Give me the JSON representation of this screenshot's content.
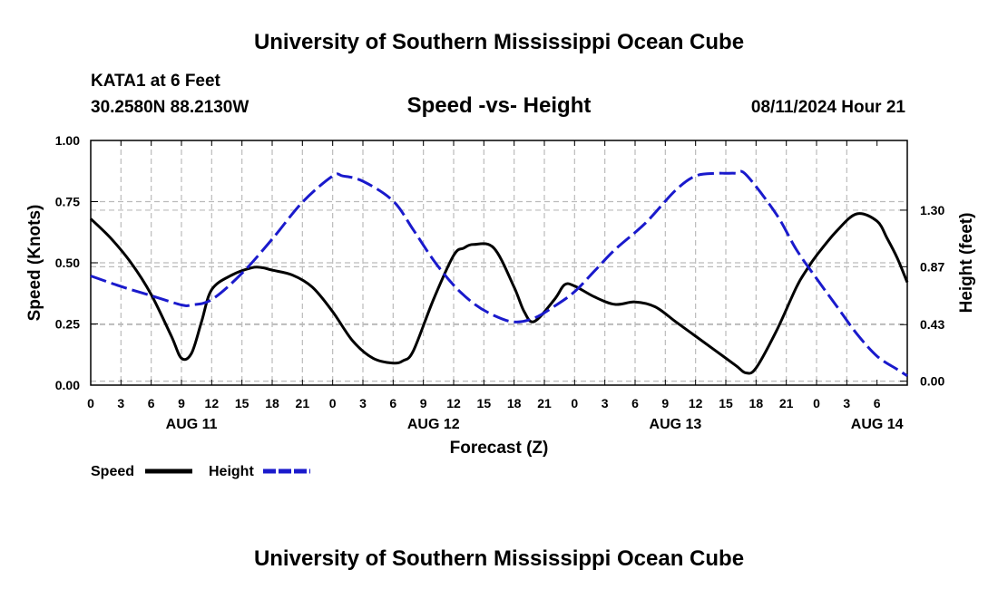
{
  "header": {
    "title": "University of Southern Mississippi Ocean Cube",
    "footer_title": "University of Southern Mississippi Ocean Cube",
    "station": "KATA1 at 6 Feet",
    "location": "30.2580N  88.2130W",
    "date": "08/11/2024 Hour 21"
  },
  "chart_data": {
    "type": "line",
    "title": "Speed -vs- Height",
    "xlabel": "Forecast (Z)",
    "ylabel_left": "Speed (Knots)",
    "ylabel_right": "Height (feet)",
    "x_range": [
      0,
      81
    ],
    "x_ticks": [
      "0",
      "3",
      "6",
      "9",
      "12",
      "15",
      "18",
      "21",
      "0",
      "3",
      "6",
      "9",
      "12",
      "15",
      "18",
      "21",
      "0",
      "3",
      "6",
      "9",
      "12",
      "15",
      "18",
      "21",
      "0",
      "3",
      "6"
    ],
    "day_labels": [
      {
        "label": "AUG 11",
        "hour": 10
      },
      {
        "label": "AUG 12",
        "hour": 34
      },
      {
        "label": "AUG 13",
        "hour": 58
      },
      {
        "label": "AUG 14",
        "hour": 78
      }
    ],
    "y_left": {
      "range": [
        0,
        1.0
      ],
      "ticks": [
        "0.00",
        "0.25",
        "0.50",
        "0.75",
        "1.00"
      ],
      "tick_values": [
        0,
        0.25,
        0.5,
        0.75,
        1.0
      ]
    },
    "y_right": {
      "range": [
        -0.03,
        1.83
      ],
      "ticks": [
        "0.00",
        "0.43",
        "0.87",
        "1.30"
      ],
      "tick_values": [
        0,
        0.43,
        0.87,
        1.3
      ]
    },
    "series": [
      {
        "name": "Speed",
        "color": "#000000",
        "dash": "solid",
        "axis": "left",
        "x": [
          0,
          2,
          4,
          6,
          8,
          9,
          10,
          11,
          12,
          14,
          16,
          17,
          18,
          20,
          22,
          24,
          26,
          28,
          30,
          31,
          32,
          34,
          36,
          37,
          38,
          40,
          42,
          43,
          44,
          46,
          47,
          48,
          50,
          52,
          54,
          56,
          58,
          60,
          62,
          64,
          65,
          66,
          68,
          70,
          71,
          72,
          74,
          76,
          78,
          79,
          80,
          81
        ],
        "values": [
          0.68,
          0.6,
          0.5,
          0.37,
          0.2,
          0.11,
          0.13,
          0.26,
          0.39,
          0.45,
          0.48,
          0.48,
          0.47,
          0.45,
          0.4,
          0.3,
          0.18,
          0.11,
          0.09,
          0.1,
          0.14,
          0.35,
          0.53,
          0.56,
          0.575,
          0.56,
          0.4,
          0.3,
          0.26,
          0.35,
          0.41,
          0.405,
          0.36,
          0.33,
          0.34,
          0.32,
          0.26,
          0.2,
          0.14,
          0.08,
          0.05,
          0.07,
          0.22,
          0.4,
          0.47,
          0.53,
          0.63,
          0.7,
          0.67,
          0.6,
          0.52,
          0.42
        ]
      },
      {
        "name": "Height",
        "color": "#1a1acc",
        "dash": "dashed",
        "axis": "right",
        "x": [
          0,
          3,
          6,
          9,
          10,
          12,
          15,
          18,
          21,
          24,
          25,
          27,
          30,
          32,
          34,
          36,
          38,
          40,
          42,
          44,
          46,
          48,
          50,
          52,
          55,
          58,
          60,
          62,
          63,
          64,
          65,
          68,
          70,
          72,
          74,
          76,
          78,
          80,
          81
        ],
        "values": [
          0.8,
          0.72,
          0.65,
          0.58,
          0.58,
          0.62,
          0.82,
          1.08,
          1.36,
          1.56,
          1.56,
          1.52,
          1.37,
          1.15,
          0.92,
          0.73,
          0.59,
          0.5,
          0.45,
          0.48,
          0.57,
          0.68,
          0.84,
          1.0,
          1.2,
          1.45,
          1.56,
          1.58,
          1.58,
          1.58,
          1.57,
          1.27,
          1.0,
          0.78,
          0.57,
          0.36,
          0.19,
          0.09,
          0.04
        ]
      }
    ],
    "legend": [
      {
        "name": "Speed",
        "color": "#000000",
        "dash": "solid"
      },
      {
        "name": "Height",
        "color": "#1a1acc",
        "dash": "dashed"
      }
    ]
  }
}
